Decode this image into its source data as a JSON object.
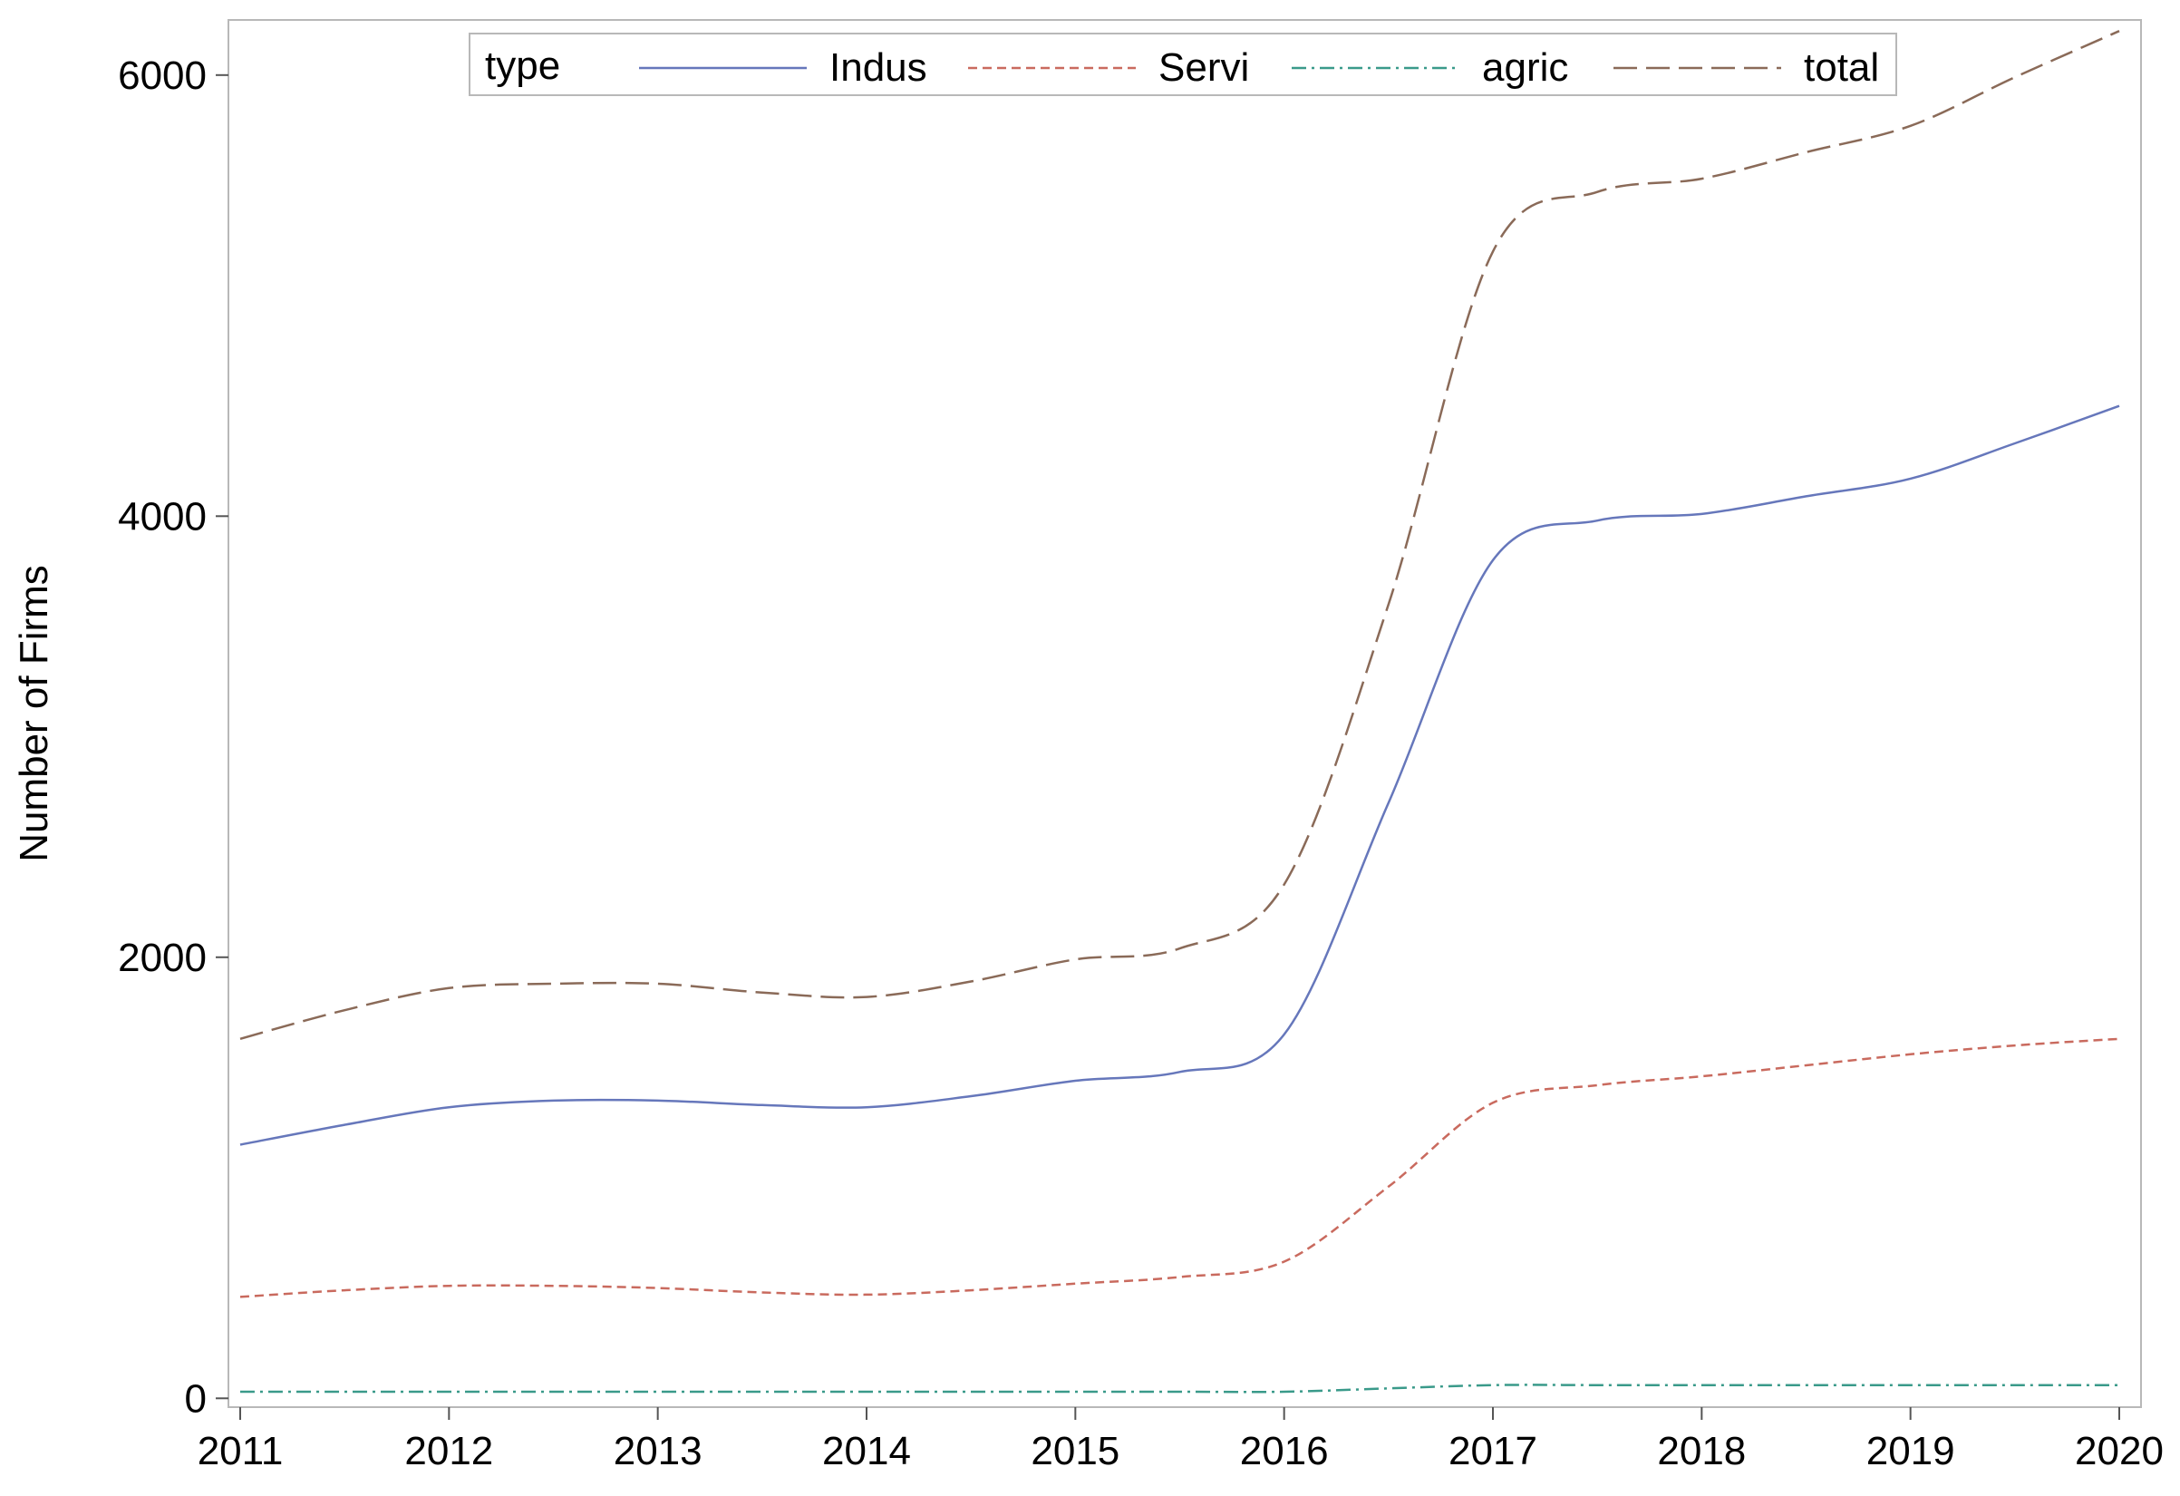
{
  "chart_data": {
    "type": "line",
    "title": "",
    "xlabel": "",
    "ylabel": "Number of Firms",
    "x": [
      2011,
      2011.5,
      2012,
      2012.5,
      2013,
      2013.5,
      2014,
      2014.5,
      2015,
      2015.5,
      2016,
      2016.5,
      2017,
      2017.5,
      2018,
      2018.5,
      2019,
      2019.5,
      2020
    ],
    "xlim": [
      2011,
      2020
    ],
    "ylim": [
      -40,
      6250
    ],
    "xticks": [
      "2011",
      "2012",
      "2013",
      "2014",
      "2015",
      "2016",
      "2017",
      "2018",
      "2019",
      "2020"
    ],
    "yticks": [
      "0",
      "2000",
      "4000",
      "6000"
    ],
    "grid": false,
    "legend": {
      "title": "type",
      "placement": "top-center"
    },
    "series": [
      {
        "name": "Indus",
        "color": "#6677bb",
        "dash": "solid",
        "values": [
          1150,
          1240,
          1320,
          1350,
          1350,
          1330,
          1320,
          1370,
          1440,
          1480,
          1650,
          2700,
          3800,
          3980,
          4010,
          4090,
          4170,
          4330,
          4500
        ]
      },
      {
        "name": "Servi",
        "color": "#c96a5e",
        "dash": "dashed",
        "values": [
          460,
          490,
          510,
          510,
          500,
          480,
          470,
          490,
          520,
          550,
          620,
          960,
          1340,
          1420,
          1460,
          1510,
          1560,
          1600,
          1630
        ]
      },
      {
        "name": "agric",
        "color": "#3a9a8a",
        "dash": "dashdot",
        "values": [
          30,
          30,
          30,
          30,
          30,
          30,
          30,
          30,
          30,
          30,
          30,
          45,
          60,
          60,
          60,
          60,
          60,
          60,
          60
        ]
      },
      {
        "name": "total",
        "color": "#8a6a58",
        "dash": "longdash",
        "values": [
          1630,
          1760,
          1860,
          1880,
          1880,
          1840,
          1820,
          1890,
          1990,
          2040,
          2330,
          3600,
          5200,
          5470,
          5530,
          5650,
          5770,
          5990,
          6200
        ]
      }
    ]
  }
}
